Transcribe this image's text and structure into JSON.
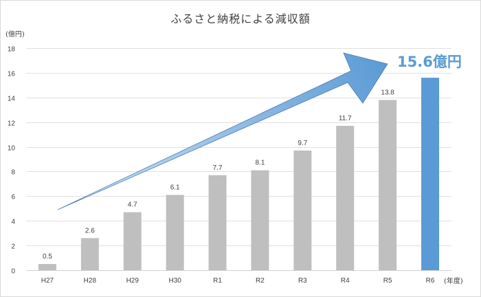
{
  "chart_data": {
    "type": "bar",
    "title": "ふるさと納税による減収額",
    "ylabel": "(億円)",
    "xlabel": "(年度)",
    "ylim": [
      0,
      18
    ],
    "yticks": [
      0,
      2,
      4,
      6,
      8,
      10,
      12,
      14,
      16,
      18
    ],
    "grid": true,
    "legend": "none",
    "categories": [
      "H27",
      "H28",
      "H29",
      "H30",
      "R1",
      "R2",
      "R3",
      "R4",
      "R5",
      "R6"
    ],
    "values": [
      0.5,
      2.6,
      4.7,
      6.1,
      7.7,
      8.1,
      9.7,
      11.7,
      13.8,
      15.6
    ],
    "data_labels": [
      "0.5",
      "2.6",
      "4.7",
      "6.1",
      "7.7",
      "8.1",
      "9.7",
      "11.7",
      "13.8",
      ""
    ],
    "highlight": {
      "category": "R6",
      "color": "#5b9bd5"
    },
    "bar_color": "#bfbfbf",
    "annotations": [
      {
        "type": "arrow",
        "direction": "up-right",
        "from": "H27",
        "to": "R6",
        "color": "#5b9bd5"
      },
      {
        "type": "text",
        "text": "15.6億円",
        "color": "#5b9bd5",
        "near": "R6"
      }
    ]
  },
  "labels": {
    "title": "ふるさと納税による減収額",
    "y_unit": "(億円)",
    "x_unit": "(年度)",
    "callout": "15.6億円"
  }
}
